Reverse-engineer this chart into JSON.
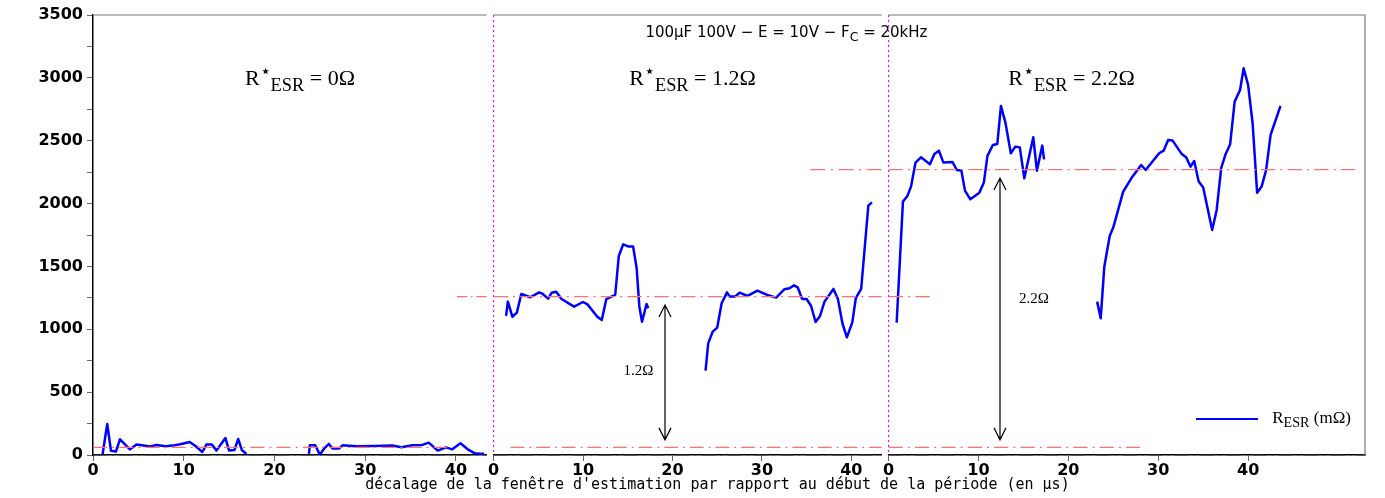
{
  "chart_data": [
    {
      "type": "line",
      "xlim": [
        0,
        43.4
      ],
      "ylim": [
        0,
        3500
      ],
      "xticks": [
        0,
        10,
        20,
        30,
        40
      ],
      "yticks": [
        0,
        {
          "value": 250,
          "label": null
        },
        500,
        {
          "value": 750,
          "label": null
        },
        1000,
        {
          "value": 1250,
          "label": null
        },
        1500,
        {
          "value": 1750,
          "label": null
        },
        2000,
        {
          "value": 2250,
          "label": null
        },
        2500,
        {
          "value": 2750,
          "label": null
        },
        3000,
        {
          "value": 3250,
          "label": null
        },
        3500
      ],
      "grid": false,
      "series": [
        {
          "color": "#0000ff",
          "x": [
            1.06,
            1.57,
            1.98,
            2.53,
            2.97,
            4.07,
            4.8,
            6.3,
            7.0,
            8.0,
            9.0,
            9.6,
            10.66,
            11.3,
            12.05,
            12.5,
            13.1,
            13.6,
            14.6,
            15.0,
            15.6,
            16.0,
            16.4,
            16.9,
            20,
            23.8,
            23.9,
            24.5,
            25.0,
            25.5,
            26.0,
            26.4,
            27.1,
            27.5,
            29,
            31,
            33,
            34,
            35.2,
            36.3,
            37.0,
            38.0,
            38.9,
            39.6,
            40.5,
            41.4,
            42.1,
            42.9,
            43.1
          ],
          "values": [
            8,
            247,
            34,
            27,
            125,
            45,
            83,
            67,
            80,
            70,
            78,
            85,
            103,
            72,
            24,
            83,
            83,
            35,
            135,
            35,
            40,
            128,
            40,
            8,
            null,
            8,
            77,
            77,
            3,
            53,
            88,
            51,
            51,
            77,
            70,
            72,
            75,
            62,
            77,
            80,
            98,
            35,
            61,
            45,
            93,
            40,
            13,
            8,
            13
          ]
        },
        {
          "color": "#ff7070",
          "line_style": "dashed",
          "x": [
            0,
            39.0
          ],
          "values": [
            60,
            60
          ]
        },
        {
          "color": "#ff7070",
          "line_style": "dashed",
          "x": [
            40.1,
            43.4
          ],
          "values": [
            1260,
            1260
          ]
        }
      ],
      "ref_lines": [
        {
          "axis": "y",
          "value": 0,
          "color": "#333333",
          "line_style": "dashed"
        }
      ],
      "annotations": [
        "R$^{⋆}$$_{ESR}$ = 0Ω"
      ]
    },
    {
      "type": "line",
      "title": "100µF 100V − E = 10V − F$_{C}$ = 20kHz",
      "xlabel": "décalage de la fenêtre d'estimation par rapport au début de la période (en µs)",
      "xlim": [
        0,
        43.4
      ],
      "ylim": [
        0,
        3500
      ],
      "xticks": [
        0,
        10,
        20,
        30,
        40
      ],
      "grid": false,
      "tick_labels": "x",
      "series": [
        {
          "color": "#0000ff",
          "x": [
            1.4,
            1.6,
            2.1,
            2.6,
            3.1,
            4.1,
            5.1,
            5.5,
            6.1,
            6.5,
            7.0,
            7.6,
            9.0,
            10.0,
            10.5,
            11.6,
            12.1,
            12.6,
            13.6,
            14.0,
            14.5,
            15.1,
            15.6,
            16.0,
            16.3,
            16.6,
            17.1,
            17.3,
            20.1,
            23.7,
            24.0,
            24.5,
            25.0,
            25.5,
            26.1,
            26.4,
            27.0,
            27.5,
            28.4,
            29.5,
            30.6,
            31.6,
            32.5,
            33.1,
            33.6,
            34.0,
            34.5,
            35.0,
            35.5,
            36.0,
            36.5,
            37.0,
            38.0,
            38.5,
            39.0,
            39.5,
            40.1,
            40.5,
            41.1,
            41.9,
            42.3
          ],
          "values": [
            1106,
            1220,
            1100,
            1132,
            1281,
            1255,
            1294,
            1281,
            1244,
            1291,
            1299,
            1241,
            1180,
            1217,
            1198,
            1100,
            1074,
            1239,
            1273,
            1583,
            1676,
            1658,
            1658,
            1485,
            1180,
            1060,
            1201,
            1167,
            null,
            671,
            888,
            981,
            1013,
            1207,
            1294,
            1260,
            1260,
            1291,
            1265,
            1307,
            1273,
            1252,
            1318,
            1326,
            1350,
            1334,
            1241,
            1241,
            1185,
            1058,
            1106,
            1220,
            1321,
            1241,
            1048,
            936,
            1053,
            1247,
            1321,
            1983,
            2010
          ]
        },
        {
          "color": "#ff7070",
          "line_style": "dashed",
          "x": [
            1.9,
            43.4
          ],
          "values": [
            60,
            60
          ]
        },
        {
          "color": "#ff7070",
          "line_style": "dashed",
          "x": [
            0,
            43.4
          ],
          "values": [
            1260,
            1260
          ]
        },
        {
          "color": "#ff7070",
          "line_style": "dashed",
          "x": [
            35.4,
            43.4
          ],
          "values": [
            2270,
            2270
          ]
        }
      ],
      "ref_lines": [
        {
          "axis": "x",
          "value": 0,
          "color": "#ff00ff",
          "line_style": "dotted"
        },
        {
          "axis": "y",
          "value": 0,
          "color": "#333333",
          "line_style": "dashed"
        }
      ],
      "annotations": [
        "R$^{⋆}$$_{ESR}$ = 1.2Ω",
        "1.2Ω"
      ]
    },
    {
      "type": "line",
      "xlim": [
        0,
        53
      ],
      "ylim": [
        0,
        3500
      ],
      "xticks": [
        0,
        10,
        20,
        30,
        40
      ],
      "grid": false,
      "tick_labels": "x",
      "legend": "bottom right",
      "series": [
        {
          "name": "R$_{ESR}$ (mΩ)",
          "color": "#0000ff",
          "x": [
            0.9,
            1.6,
            2.1,
            2.5,
            3.0,
            3.6,
            4.6,
            5.1,
            5.6,
            6.1,
            7.1,
            7.6,
            8.1,
            8.5,
            9.1,
            10.1,
            10.6,
            11.0,
            11.6,
            12.1,
            12.5,
            13.0,
            13.6,
            14.1,
            14.6,
            15.1,
            16.1,
            16.5,
            17.1,
            17.3,
            20.2,
            23.2,
            23.6,
            24.0,
            24.6,
            25.0,
            26.1,
            27.0,
            28.1,
            28.6,
            30.1,
            30.6,
            31.1,
            31.6,
            32.6,
            33.1,
            33.6,
            34.0,
            34.5,
            35.0,
            36.0,
            36.5,
            37.0,
            37.5,
            38.0,
            38.5,
            39.1,
            39.5,
            40.0,
            40.5,
            41.0,
            41.5,
            42.0,
            42.5,
            43.6
          ],
          "values": [
            1053,
            2016,
            2061,
            2136,
            2326,
            2368,
            2312,
            2395,
            2421,
            2326,
            2331,
            2267,
            2262,
            2103,
            2034,
            2087,
            2167,
            2379,
            2466,
            2474,
            2777,
            2644,
            2400,
            2453,
            2447,
            2201,
            2527,
            2262,
            2461,
            2352,
            null,
            1220,
            1087,
            1498,
            1742,
            1811,
            2095,
            2201,
            2307,
            2267,
            2400,
            2421,
            2506,
            2501,
            2395,
            2368,
            2294,
            2339,
            2175,
            2127,
            1790,
            1949,
            2281,
            2395,
            2472,
            2811,
            2904,
            3076,
            2943,
            2639,
            2087,
            2135,
            2267,
            2546,
            2777
          ]
        },
        {
          "color": "#ff7070",
          "line_style": "dashed",
          "x": [
            0,
            28.0
          ],
          "values": [
            60,
            60
          ]
        },
        {
          "color": "#ff7070",
          "line_style": "dashed",
          "x": [
            0,
            4.6
          ],
          "values": [
            1260,
            1260
          ]
        },
        {
          "color": "#ff7070",
          "line_style": "dashed",
          "x": [
            0,
            51.9
          ],
          "values": [
            2270,
            2270
          ]
        }
      ],
      "ref_lines": [
        {
          "axis": "x",
          "value": 0,
          "color": "#ff00ff",
          "line_style": "dotted"
        },
        {
          "axis": "y",
          "value": 0,
          "color": "#333333",
          "line_style": "dashed"
        }
      ],
      "annotations": [
        "R$^{⋆}$$_{ESR}$ = 2.2Ω",
        "2.2Ω"
      ]
    }
  ]
}
